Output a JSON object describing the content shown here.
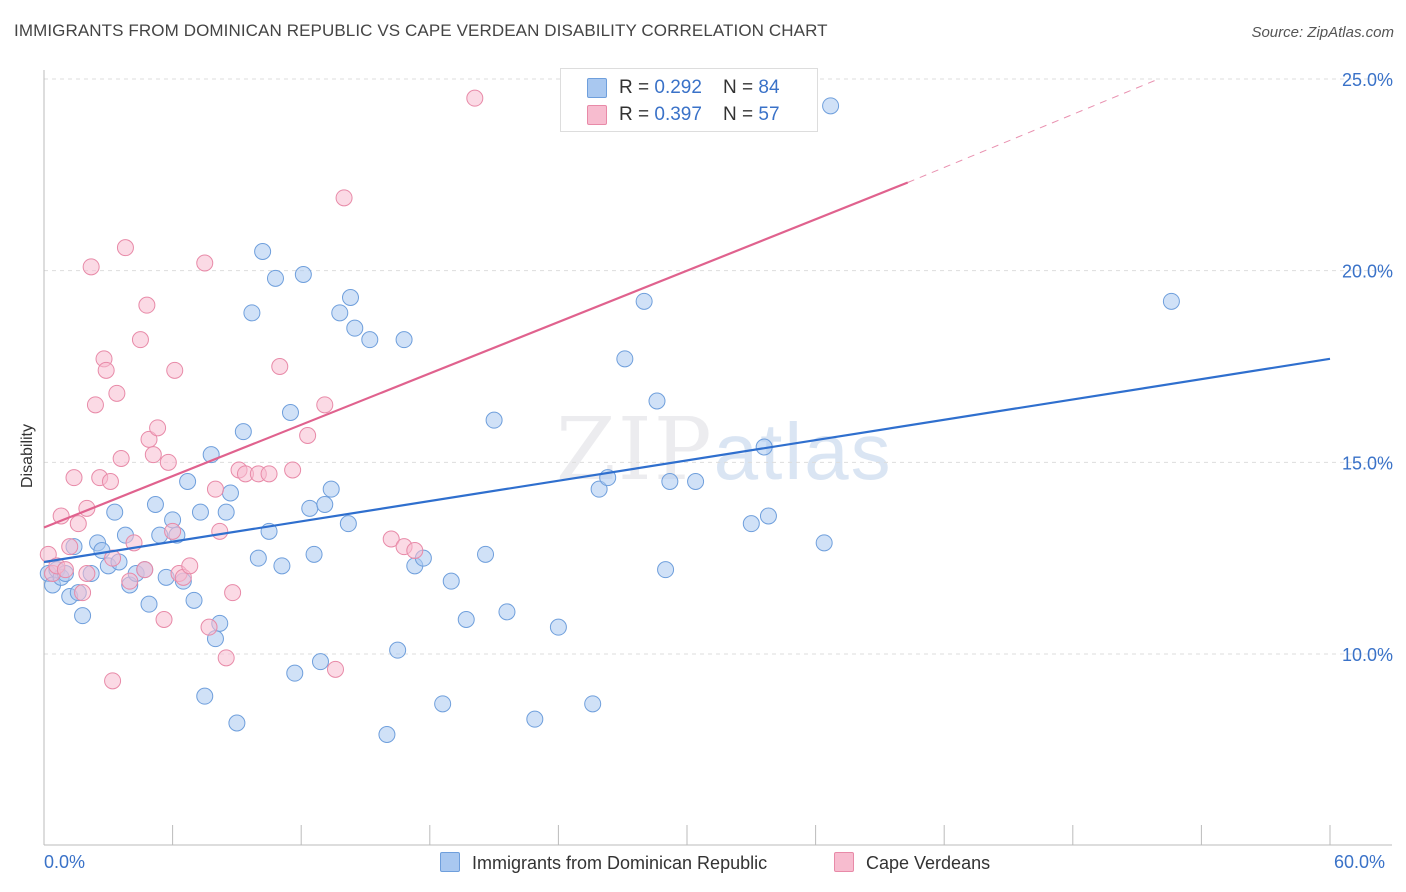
{
  "title": "IMMIGRANTS FROM DOMINICAN REPUBLIC VS CAPE VERDEAN DISABILITY CORRELATION CHART",
  "source": "Source: ZipAtlas.com",
  "watermark": {
    "zip": "ZIP",
    "atlas": "atlas"
  },
  "legend_top": [
    {
      "r_label": "R = ",
      "r_value": "0.292",
      "n_label": "N = ",
      "n_value": "84",
      "color": "#a9c8f0"
    },
    {
      "r_label": "R = ",
      "r_value": "0.397",
      "n_label": "N = ",
      "n_value": "57",
      "color": "#f7bccf"
    }
  ],
  "chart_data": {
    "type": "scatter",
    "title": "IMMIGRANTS FROM DOMINICAN REPUBLIC VS CAPE VERDEAN DISABILITY CORRELATION CHART",
    "xlabel": "",
    "ylabel": "Disability",
    "xlim": [
      0,
      60
    ],
    "ylim": [
      5,
      26
    ],
    "x_tick_labels": [
      "0.0%",
      "60.0%"
    ],
    "y_ticks": [
      10,
      15,
      20,
      25
    ],
    "y_tick_labels": [
      "10.0%",
      "15.0%",
      "20.0%",
      "25.0%"
    ],
    "grid": true,
    "legend_position": "bottom",
    "series": [
      {
        "name": "Immigrants from Dominican Republic",
        "color": "#a9c8f0",
        "stroke": "#6f9fdc",
        "trend_color": "#2f6fce",
        "trend": {
          "x": [
            0,
            60
          ],
          "y": [
            12.4,
            17.7
          ]
        },
        "points": [
          [
            0.2,
            12.1
          ],
          [
            0.4,
            11.8
          ],
          [
            0.6,
            12.2
          ],
          [
            0.8,
            12.0
          ],
          [
            1.0,
            12.1
          ],
          [
            1.2,
            11.5
          ],
          [
            1.4,
            12.8
          ],
          [
            1.6,
            11.6
          ],
          [
            1.8,
            11.0
          ],
          [
            2.2,
            12.1
          ],
          [
            2.5,
            12.9
          ],
          [
            2.7,
            12.7
          ],
          [
            3.0,
            12.3
          ],
          [
            3.3,
            13.7
          ],
          [
            3.5,
            12.4
          ],
          [
            3.8,
            13.1
          ],
          [
            4.0,
            11.8
          ],
          [
            4.3,
            12.1
          ],
          [
            4.7,
            12.2
          ],
          [
            4.9,
            11.3
          ],
          [
            5.2,
            13.9
          ],
          [
            5.4,
            13.1
          ],
          [
            5.7,
            12.0
          ],
          [
            6.0,
            13.5
          ],
          [
            6.2,
            13.1
          ],
          [
            6.5,
            11.9
          ],
          [
            6.7,
            14.5
          ],
          [
            7.0,
            11.4
          ],
          [
            7.3,
            13.7
          ],
          [
            7.5,
            8.9
          ],
          [
            7.8,
            15.2
          ],
          [
            8.0,
            10.4
          ],
          [
            8.2,
            10.8
          ],
          [
            8.5,
            13.7
          ],
          [
            8.7,
            14.2
          ],
          [
            9.0,
            8.2
          ],
          [
            9.3,
            15.8
          ],
          [
            9.7,
            18.9
          ],
          [
            10.0,
            12.5
          ],
          [
            10.2,
            20.5
          ],
          [
            10.5,
            13.2
          ],
          [
            10.8,
            19.8
          ],
          [
            11.1,
            12.3
          ],
          [
            11.5,
            16.3
          ],
          [
            11.7,
            9.5
          ],
          [
            12.1,
            19.9
          ],
          [
            12.4,
            13.8
          ],
          [
            12.6,
            12.6
          ],
          [
            12.9,
            9.8
          ],
          [
            13.1,
            13.9
          ],
          [
            13.4,
            14.3
          ],
          [
            13.8,
            18.9
          ],
          [
            14.2,
            13.4
          ],
          [
            14.3,
            19.3
          ],
          [
            14.5,
            18.5
          ],
          [
            15.2,
            18.2
          ],
          [
            16.0,
            7.9
          ],
          [
            16.5,
            10.1
          ],
          [
            16.8,
            18.2
          ],
          [
            17.3,
            12.3
          ],
          [
            17.7,
            12.5
          ],
          [
            18.6,
            8.7
          ],
          [
            19.0,
            11.9
          ],
          [
            19.7,
            10.9
          ],
          [
            20.6,
            12.6
          ],
          [
            21.0,
            16.1
          ],
          [
            21.6,
            11.1
          ],
          [
            22.9,
            8.3
          ],
          [
            24.0,
            10.7
          ],
          [
            25.6,
            8.7
          ],
          [
            25.9,
            14.3
          ],
          [
            26.3,
            14.6
          ],
          [
            27.1,
            17.7
          ],
          [
            28.0,
            19.2
          ],
          [
            28.6,
            16.6
          ],
          [
            29.0,
            12.2
          ],
          [
            29.2,
            14.5
          ],
          [
            30.4,
            14.5
          ],
          [
            33.0,
            13.4
          ],
          [
            33.6,
            15.4
          ],
          [
            33.8,
            13.6
          ],
          [
            36.4,
            12.9
          ],
          [
            36.7,
            24.3
          ],
          [
            52.6,
            19.2
          ]
        ]
      },
      {
        "name": "Cape Verdeans",
        "color": "#f7bccf",
        "stroke": "#e88aa8",
        "trend_color": "#e0628e",
        "trend": {
          "x": [
            0,
            40.3
          ],
          "y": [
            13.3,
            22.3
          ]
        },
        "trend_dashed": {
          "x": [
            40.3,
            52.0
          ],
          "y": [
            22.3,
            25.0
          ]
        },
        "points": [
          [
            0.2,
            12.6
          ],
          [
            0.4,
            12.1
          ],
          [
            0.6,
            12.3
          ],
          [
            0.8,
            13.6
          ],
          [
            1.0,
            12.2
          ],
          [
            1.2,
            12.8
          ],
          [
            1.4,
            14.6
          ],
          [
            1.6,
            13.4
          ],
          [
            1.8,
            11.6
          ],
          [
            2.0,
            13.8
          ],
          [
            2.2,
            20.1
          ],
          [
            2.4,
            16.5
          ],
          [
            2.6,
            14.6
          ],
          [
            2.8,
            17.7
          ],
          [
            2.9,
            17.4
          ],
          [
            3.1,
            14.5
          ],
          [
            3.2,
            12.5
          ],
          [
            3.4,
            16.8
          ],
          [
            3.6,
            15.1
          ],
          [
            3.8,
            20.6
          ],
          [
            4.0,
            11.9
          ],
          [
            4.2,
            12.9
          ],
          [
            4.5,
            18.2
          ],
          [
            4.7,
            12.2
          ],
          [
            4.9,
            15.6
          ],
          [
            5.1,
            15.2
          ],
          [
            5.3,
            15.9
          ],
          [
            5.6,
            10.9
          ],
          [
            5.8,
            15.0
          ],
          [
            6.1,
            17.4
          ],
          [
            6.3,
            12.1
          ],
          [
            6.5,
            12.0
          ],
          [
            6.8,
            12.3
          ],
          [
            7.5,
            20.2
          ],
          [
            7.7,
            10.7
          ],
          [
            8.0,
            14.3
          ],
          [
            8.2,
            13.2
          ],
          [
            8.5,
            9.9
          ],
          [
            8.8,
            11.6
          ],
          [
            9.1,
            14.8
          ],
          [
            9.4,
            14.7
          ],
          [
            10.0,
            14.7
          ],
          [
            10.5,
            14.7
          ],
          [
            11.0,
            17.5
          ],
          [
            11.6,
            14.8
          ],
          [
            12.3,
            15.7
          ],
          [
            13.1,
            16.5
          ],
          [
            13.6,
            9.6
          ],
          [
            14.0,
            21.9
          ],
          [
            16.2,
            13.0
          ],
          [
            16.8,
            12.8
          ],
          [
            17.3,
            12.7
          ],
          [
            20.1,
            24.5
          ],
          [
            3.2,
            9.3
          ],
          [
            4.8,
            19.1
          ],
          [
            2.0,
            12.1
          ],
          [
            6.0,
            13.2
          ]
        ]
      }
    ]
  }
}
